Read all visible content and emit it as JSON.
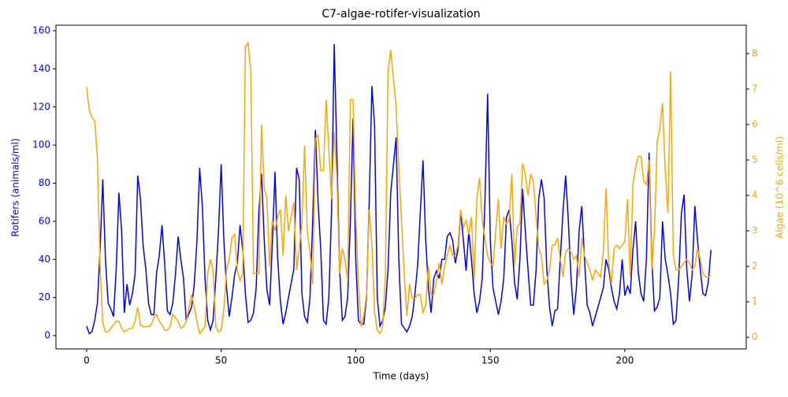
{
  "chart_data": {
    "type": "line",
    "title": "C7-algae-rotifer-visualization",
    "x_label": "Time (days)",
    "y_label": "Rotifers (animals/ml)",
    "y2_label": "Algae (10^6 cells/ml)",
    "xlim": [
      -11.4,
      245.1
    ],
    "xticks": [
      0,
      50,
      100,
      150,
      200
    ],
    "ylim": [
      -7.0,
      162.9
    ],
    "yticks": [
      0,
      20,
      40,
      60,
      80,
      100,
      120,
      140,
      160
    ],
    "y2lim": [
      -0.33,
      8.8
    ],
    "y2ticks": [
      0,
      1,
      2,
      3,
      4,
      5,
      6,
      7,
      8
    ],
    "x": [
      0,
      1,
      2,
      3,
      4,
      5,
      6,
      7,
      8,
      9,
      10,
      11,
      12,
      13,
      14,
      15,
      16,
      17,
      18,
      19,
      20,
      21,
      22,
      23,
      24,
      25,
      26,
      27,
      28,
      29,
      30,
      31,
      32,
      33,
      34,
      35,
      36,
      37,
      39,
      40,
      41,
      42,
      43,
      44,
      45,
      46,
      47,
      48,
      49,
      50,
      51,
      52,
      53,
      54,
      55,
      56,
      57,
      58,
      59,
      60,
      61,
      62,
      63,
      64,
      65,
      66,
      67,
      68,
      69,
      70,
      71,
      72,
      73,
      74,
      75,
      77,
      78,
      79,
      80,
      81,
      82,
      83,
      84,
      85,
      86,
      87,
      88,
      89,
      90,
      91,
      92,
      93,
      94,
      95,
      96,
      97,
      98,
      99,
      100,
      101,
      102,
      103,
      104,
      105,
      106,
      107,
      108,
      109,
      110,
      111,
      112,
      113,
      115,
      116,
      117,
      118,
      119,
      120,
      121,
      122,
      123,
      124,
      125,
      126,
      127,
      128,
      129,
      130,
      131,
      132,
      133,
      134,
      135,
      136,
      137,
      138,
      139,
      140,
      141,
      142,
      143,
      144,
      145,
      146,
      147,
      148,
      149,
      150,
      151,
      153,
      154,
      155,
      156,
      157,
      158,
      159,
      160,
      161,
      162,
      163,
      164,
      165,
      166,
      167,
      168,
      169,
      170,
      171,
      172,
      173,
      174,
      175,
      176,
      177,
      178,
      179,
      180,
      181,
      182,
      183,
      184,
      185,
      186,
      187,
      188,
      189,
      191,
      192,
      193,
      194,
      195,
      196,
      197,
      198,
      199,
      200,
      201,
      202,
      203,
      204,
      205,
      206,
      207,
      208,
      209,
      210,
      211,
      212,
      213,
      214,
      215,
      216,
      217,
      218,
      219,
      220,
      221,
      222,
      223,
      224,
      225,
      226,
      227,
      228,
      229,
      230,
      231,
      232
    ],
    "series": [
      {
        "name": "Rotifers",
        "color": "blue",
        "axis": "y",
        "values": [
          5,
          1,
          2,
          8,
          17,
          45,
          82,
          40,
          17,
          14,
          10,
          35,
          75,
          55,
          12,
          27,
          16,
          22,
          32,
          84,
          72,
          47,
          35,
          17,
          11,
          11,
          33,
          42,
          58,
          38,
          13,
          11,
          17,
          32,
          52,
          40,
          30,
          8,
          15,
          27,
          50,
          88,
          68,
          30,
          8,
          3,
          8,
          30,
          55,
          90,
          50,
          25,
          10,
          20,
          32,
          38,
          58,
          45,
          22,
          7,
          8,
          12,
          25,
          65,
          85,
          50,
          24,
          16,
          48,
          86,
          40,
          18,
          6,
          12,
          20,
          35,
          88,
          82,
          22,
          10,
          7,
          20,
          60,
          108,
          70,
          45,
          8,
          6,
          20,
          65,
          153,
          95,
          35,
          8,
          10,
          20,
          60,
          114,
          40,
          8,
          6,
          6,
          20,
          70,
          131,
          110,
          20,
          5,
          8,
          15,
          35,
          75,
          104,
          40,
          6,
          4,
          2,
          5,
          10,
          22,
          37,
          65,
          92,
          50,
          25,
          12,
          30,
          34,
          30,
          40,
          40,
          52,
          54,
          50,
          38,
          45,
          65,
          50,
          34,
          55,
          40,
          22,
          12,
          18,
          30,
          70,
          127,
          50,
          25,
          11,
          18,
          30,
          62,
          66,
          50,
          28,
          19,
          40,
          77,
          55,
          35,
          16,
          16,
          34,
          72,
          82,
          72,
          35,
          15,
          5,
          13,
          14,
          40,
          65,
          84,
          60,
          30,
          11,
          25,
          55,
          68,
          40,
          16,
          12,
          5,
          10,
          20,
          25,
          40,
          35,
          25,
          18,
          14,
          22,
          40,
          21,
          26,
          22,
          45,
          60,
          33,
          22,
          18,
          40,
          96,
          40,
          13,
          15,
          20,
          60,
          40,
          32,
          22,
          6,
          8,
          30,
          64,
          74,
          35,
          18,
          32,
          68,
          50,
          35,
          22,
          21,
          28,
          45
        ]
      },
      {
        "name": "Algae",
        "color": "orange",
        "axis": "y2",
        "values": [
          7.05,
          6.4,
          6.2,
          6.1,
          5.1,
          2.0,
          0.4,
          0.15,
          0.15,
          0.25,
          0.35,
          0.45,
          0.45,
          0.25,
          0.15,
          0.2,
          0.25,
          0.25,
          0.45,
          0.85,
          0.35,
          0.3,
          0.3,
          0.3,
          0.35,
          0.55,
          0.65,
          0.45,
          0.35,
          0.2,
          0.2,
          0.3,
          0.65,
          0.55,
          0.45,
          0.25,
          0.3,
          0.45,
          1.2,
          0.85,
          0.45,
          0.1,
          0.2,
          0.3,
          1.8,
          2.2,
          1.9,
          0.3,
          0.15,
          0.2,
          0.8,
          1.9,
          2.2,
          2.8,
          2.9,
          1.9,
          1.6,
          1.8,
          8.2,
          8.3,
          7.5,
          1.8,
          1.8,
          1.8,
          6.0,
          4.2,
          3.9,
          2.0,
          3.3,
          3.0,
          3.4,
          3.6,
          2.3,
          4.0,
          3.0,
          3.8,
          1.9,
          2.5,
          3.2,
          5.4,
          3.0,
          2.4,
          1.5,
          5.6,
          5.7,
          4.7,
          4.7,
          6.7,
          5.3,
          3.9,
          5.8,
          4.5,
          1.8,
          2.5,
          2.2,
          1.6,
          6.7,
          6.7,
          3.4,
          1.5,
          0.3,
          0.6,
          1.2,
          3.6,
          2.6,
          0.7,
          0.2,
          0.1,
          0.3,
          1.7,
          7.5,
          8.1,
          6.5,
          4.8,
          3.3,
          1.8,
          0.6,
          1.5,
          1.1,
          1.1,
          1.2,
          1.2,
          0.7,
          0.9,
          2.0,
          1.2,
          1.2,
          1.6,
          2.1,
          1.5,
          2.0,
          2.3,
          2.6,
          2.3,
          2.3,
          2.6,
          3.6,
          3.1,
          3.3,
          2.9,
          3.4,
          1.6,
          3.9,
          4.5,
          3.3,
          2.8,
          2.3,
          2.1,
          2.0,
          3.9,
          2.5,
          3.4,
          3.2,
          3.3,
          4.6,
          2.0,
          3.1,
          3.2,
          4.9,
          4.6,
          4.0,
          4.6,
          4.4,
          3.4,
          2.5,
          2.3,
          1.5,
          1.6,
          1.9,
          2.6,
          2.6,
          2.8,
          2.2,
          1.7,
          2.4,
          2.5,
          2.4,
          2.2,
          2.3,
          1.7,
          2.8,
          2.3,
          2.1,
          1.9,
          1.6,
          1.9,
          1.7,
          2.4,
          4.2,
          2.1,
          1.5,
          2.5,
          2.6,
          2.5,
          2.6,
          2.7,
          3.9,
          1.7,
          4.3,
          4.8,
          5.1,
          5.1,
          4.4,
          4.3,
          5.0,
          1.9,
          3.0,
          5.5,
          5.9,
          6.6,
          4.7,
          3.5,
          7.5,
          2.3,
          1.9,
          1.9,
          2.0,
          2.1,
          2.2,
          2.1,
          1.9,
          2.0,
          2.5,
          2.2,
          1.8,
          1.7,
          1.7,
          1.75
        ]
      }
    ]
  }
}
